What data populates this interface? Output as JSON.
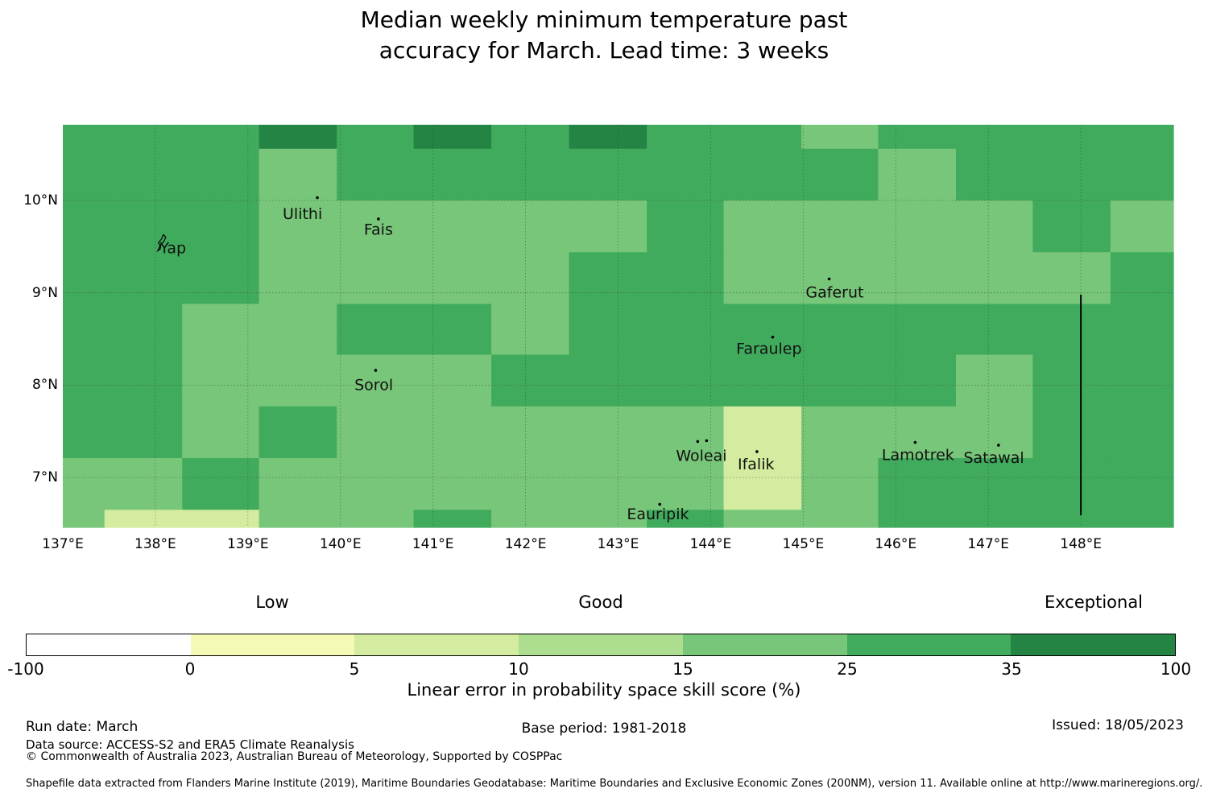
{
  "title": {
    "line1": "Median weekly minimum temperature past",
    "line2": "accuracy for March. Lead time: 3 weeks"
  },
  "footer": {
    "run_date": "Run date: March",
    "data_source": "Data source: ACCESS-S2 and ERA5 Climate Reanalysis",
    "copyright": "© Commonwealth of Australia 2023, Australian Bureau of Meteorology, Supported by COSPPac",
    "base_period": "Base period: 1981-2018",
    "issued": "Issued: 18/05/2023",
    "shapefile_note": "Shapefile data extracted from Flanders Marine Institute (2019), Maritime Boundaries Geodatabase: Maritime Boundaries and Exclusive Economic Zones (200NM), version 11. Available online at http://www.marineregions.org/."
  },
  "chart_data": {
    "type": "heatmap",
    "title": "Median weekly minimum temperature past accuracy for March. Lead time: 3 weeks",
    "xlabel_ticks": [
      "137°E",
      "138°E",
      "139°E",
      "140°E",
      "141°E",
      "142°E",
      "143°E",
      "144°E",
      "145°E",
      "146°E",
      "147°E",
      "148°E"
    ],
    "ylabel_ticks": [
      "10°N",
      "9°N",
      "8°N",
      "7°N"
    ],
    "lon_tick_values": [
      137,
      138,
      139,
      140,
      141,
      142,
      143,
      144,
      145,
      146,
      147,
      148
    ],
    "lat_tick_values": [
      10,
      9,
      8,
      7
    ],
    "lon_range": [
      137.0,
      149.0
    ],
    "lat_range": [
      6.46,
      10.82
    ],
    "grid_on": true,
    "col_lon_edges": [
      137.0,
      137.45,
      138.29,
      139.12,
      139.96,
      140.79,
      141.63,
      142.47,
      143.31,
      144.14,
      144.98,
      145.81,
      146.65,
      147.48,
      148.32,
      149.0
    ],
    "row_lat_edges": [
      10.82,
      10.56,
      10.0,
      9.44,
      8.88,
      8.33,
      7.77,
      7.21,
      6.65,
      6.46
    ],
    "grid_rows": [
      "MMMDMDMDMMLMMMM",
      "MMMLMMMMMMMLMMM",
      "MMMLLLLLMLLLLML",
      "MMMLLLLMMLLLLLM",
      "MMLLMMLMMMMMMMM",
      "MMLLLLMMMMMMLMM",
      "MMLMLLLLLPLLLMM",
      "LLMLLLLLLPLMMMM",
      "LPPLLMLLMLLMMMM"
    ],
    "palette": {
      "D": "#238443",
      "M": "#41ab5d",
      "L": "#78c679",
      "P": "#d3eca0"
    },
    "value_ranges_pct": {
      "D": "35 to 100",
      "M": "25 to 35",
      "L": "15 to 25",
      "P": "5 to 10"
    },
    "boundary_line": {
      "lon": 148.0,
      "lat_from": 8.98,
      "lat_to": 6.59,
      "color": "#000000"
    },
    "islands": [
      {
        "name": "Yap",
        "dot_lon": 138.06,
        "dot_lat": 9.56,
        "label_lon": 138.19,
        "label_lat": 9.49,
        "marker": "outline"
      },
      {
        "name": "Ulithi",
        "dot_lon": 139.75,
        "dot_lat": 10.03,
        "label_lon": 139.59,
        "label_lat": 9.86,
        "marker": "dot"
      },
      {
        "name": "Fais",
        "dot_lon": 140.41,
        "dot_lat": 9.8,
        "label_lon": 140.41,
        "label_lat": 9.69,
        "marker": "dot"
      },
      {
        "name": "Sorol",
        "dot_lon": 140.38,
        "dot_lat": 8.16,
        "label_lon": 140.36,
        "label_lat": 8.01,
        "marker": "dot"
      },
      {
        "name": "Gaferut",
        "dot_lon": 145.28,
        "dot_lat": 9.15,
        "label_lon": 145.34,
        "label_lat": 9.01,
        "marker": "dot"
      },
      {
        "name": "Faraulep",
        "dot_lon": 144.67,
        "dot_lat": 8.52,
        "label_lon": 144.63,
        "label_lat": 8.4,
        "marker": "dot"
      },
      {
        "name": "Woleai",
        "dot_lon": 143.86,
        "dot_lat": 7.39,
        "label_lon": 143.9,
        "label_lat": 7.24,
        "marker": "dot2"
      },
      {
        "name": "Ifalik",
        "dot_lon": 144.5,
        "dot_lat": 7.28,
        "label_lon": 144.49,
        "label_lat": 7.15,
        "marker": "dot"
      },
      {
        "name": "Eauripik",
        "dot_lon": 143.45,
        "dot_lat": 6.71,
        "label_lon": 143.43,
        "label_lat": 6.61,
        "marker": "dot"
      },
      {
        "name": "Lamotrek",
        "dot_lon": 146.21,
        "dot_lat": 7.38,
        "label_lon": 146.24,
        "label_lat": 7.25,
        "marker": "dot"
      },
      {
        "name": "Satawal",
        "dot_lon": 147.11,
        "dot_lat": 7.35,
        "label_lon": 147.06,
        "label_lat": 7.22,
        "marker": "dot"
      }
    ],
    "colorbar": {
      "boundaries": [
        -100,
        0,
        5,
        10,
        15,
        25,
        35,
        100
      ],
      "colors": [
        "#ffffff",
        "#f4f9b6",
        "#d3eca0",
        "#addd8e",
        "#78c679",
        "#41ab5d",
        "#238443"
      ],
      "category_labels": [
        {
          "label": "Low",
          "segment": 1
        },
        {
          "label": "Good",
          "segment": 3
        },
        {
          "label": "Exceptional",
          "segment": 6
        }
      ],
      "axis_label": "Linear error in probability space skill score (%)"
    }
  }
}
